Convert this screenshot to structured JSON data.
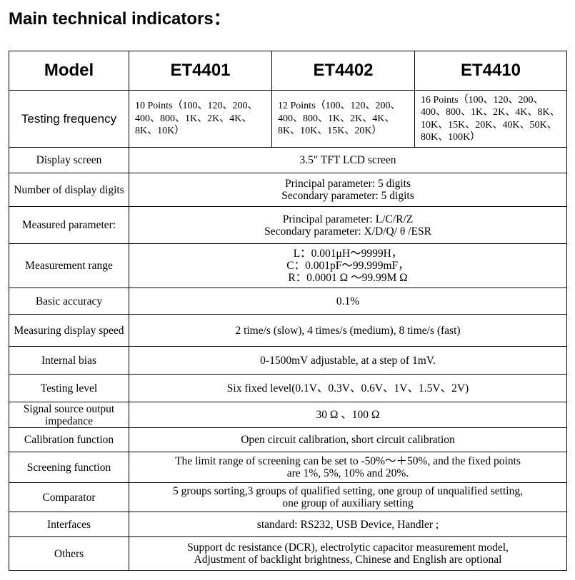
{
  "title": "Main technical indicators：",
  "header": {
    "label": "Model",
    "models": [
      "ET4401",
      "ET4402",
      "ET4410"
    ]
  },
  "frequency": {
    "label": "Testing frequency",
    "values": [
      "10 Points（100、120、200、400、800、1K、2K、4K、8K、10K）",
      "12 Points（100、120、200、400、800、1K、2K、4K、8K、10K、15K、20K）",
      "16 Points（100、120、200、400、800、1K、2K、4K、8K、10K、15K、20K、40K、50K、80K、100K）"
    ]
  },
  "rows": [
    {
      "label": "Display screen",
      "lines": [
        "3.5\" TFT LCD screen"
      ]
    },
    {
      "label": "Number of display digits",
      "lines": [
        "Principal parameter: 5 digits",
        "Secondary parameter: 5 digits"
      ]
    },
    {
      "label": "Measured parameter:",
      "lines": [
        "Principal parameter: L/C/R/Z",
        "Secondary parameter: X/D/Q/ θ /ESR"
      ]
    },
    {
      "label": "Measurement range",
      "lines": [
        "L：0.001μH～9999H，",
        "C：0.001pF～99.999mF，",
        "R：0.0001 Ω ～99.99M Ω"
      ]
    },
    {
      "label": "Basic accuracy",
      "lines": [
        "0.1%"
      ]
    },
    {
      "label": "Measuring display speed",
      "lines": [
        "2 time/s (slow), 4 times/s (medium), 8 time/s (fast)"
      ]
    },
    {
      "label": "Internal bias",
      "lines": [
        "0-1500mV adjustable, at a step of 1mV."
      ]
    },
    {
      "label": "Testing level",
      "lines": [
        "Six fixed level(0.1V、0.3V、0.6V、1V、1.5V、2V)"
      ]
    },
    {
      "label": "Signal source output impedance",
      "lines": [
        "30 Ω 、100 Ω"
      ]
    },
    {
      "label": "Calibration function",
      "lines": [
        "Open circuit calibration, short circuit calibration"
      ]
    },
    {
      "label": "Screening function",
      "lines": [
        "The limit range of screening can be set to -50%～＋50%, and the fixed points",
        "are 1%, 5%, 10% and 20%."
      ]
    },
    {
      "label": "Comparator",
      "lines": [
        "5 groups sorting,3 groups of qualified setting, one group of unqualified setting,",
        "one group of auxiliary setting"
      ]
    },
    {
      "label": "Interfaces",
      "lines": [
        "standard: RS232, USB Device, Handler ;"
      ]
    },
    {
      "label": "Others",
      "lines": [
        "Support dc resistance (DCR), electrolytic capacitor measurement model,",
        "Adjustment of backlight brightness, Chinese and English are optional"
      ]
    }
  ]
}
